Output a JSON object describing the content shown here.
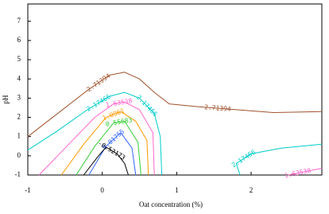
{
  "chart_data": {
    "type": "contour",
    "xlabel": "Oat concentration (%)",
    "ylabel": "pH",
    "xlim": [
      -1,
      2.95
    ],
    "ylim": [
      -1,
      7.9
    ],
    "xticks": [
      -1,
      0,
      1,
      2
    ],
    "yticks": [
      -1,
      0,
      1,
      2,
      3,
      4,
      5,
      6,
      7
    ],
    "series": [
      {
        "level": 2.71394,
        "color": "#a0522d",
        "x": [
          -1,
          -0.6,
          -0.2,
          0.1,
          0.3,
          0.5,
          0.7,
          0.9,
          1.3,
          1.8,
          2.3,
          2.95
        ],
        "y": [
          1.0,
          2.2,
          3.4,
          4.2,
          4.35,
          4.0,
          3.3,
          2.7,
          2.55,
          2.4,
          2.25,
          2.3
        ]
      },
      {
        "level": 2.17466,
        "color": "#00cccc",
        "x": [
          -1,
          -0.6,
          -0.2,
          0.1,
          0.3,
          0.5,
          0.7,
          0.78,
          0.8,
          null,
          1.85,
          1.8,
          2.0,
          2.4,
          2.95
        ],
        "y": [
          0.3,
          1.3,
          2.4,
          3.1,
          3.3,
          3.0,
          2.2,
          1.0,
          -1,
          null,
          -1,
          -0.4,
          0.1,
          0.4,
          0.6
        ]
      },
      {
        "level": 1.63538,
        "color": "#ff66cc",
        "x": [
          -0.85,
          -0.5,
          -0.1,
          0.15,
          0.3,
          0.5,
          0.68,
          0.7,
          null,
          2.5,
          2.75,
          2.95
        ],
        "y": [
          -1,
          0.4,
          2.0,
          2.7,
          2.8,
          2.4,
          1.2,
          -1,
          null,
          -1,
          -0.8,
          -0.65
        ]
      },
      {
        "level": 1.0961,
        "color": "#ff9900",
        "x": [
          -0.55,
          -0.25,
          0.05,
          0.25,
          0.45,
          0.6,
          0.62
        ],
        "y": [
          -1,
          0.6,
          2.0,
          2.3,
          1.8,
          0.8,
          -1
        ]
      },
      {
        "level": 0.55683,
        "color": "#33cc33",
        "x": [
          -0.35,
          -0.1,
          0.15,
          0.3,
          0.48,
          0.52
        ],
        "y": [
          -1,
          0.5,
          1.7,
          1.8,
          0.7,
          -1
        ]
      },
      {
        "level": 0.01755,
        "color": "#3366ff",
        "x": [
          -0.18,
          0.05,
          0.25,
          0.4,
          0.45
        ],
        "y": [
          -1,
          0.5,
          1.2,
          0.4,
          -1
        ]
      },
      {
        "level": -0.52173,
        "color": "#000000",
        "x": [
          -0.25,
          -0.05,
          0.05,
          0.2,
          0.3,
          0.35
        ],
        "y": [
          -1,
          0.0,
          0.45,
          0.1,
          -0.4,
          -1
        ]
      }
    ]
  }
}
